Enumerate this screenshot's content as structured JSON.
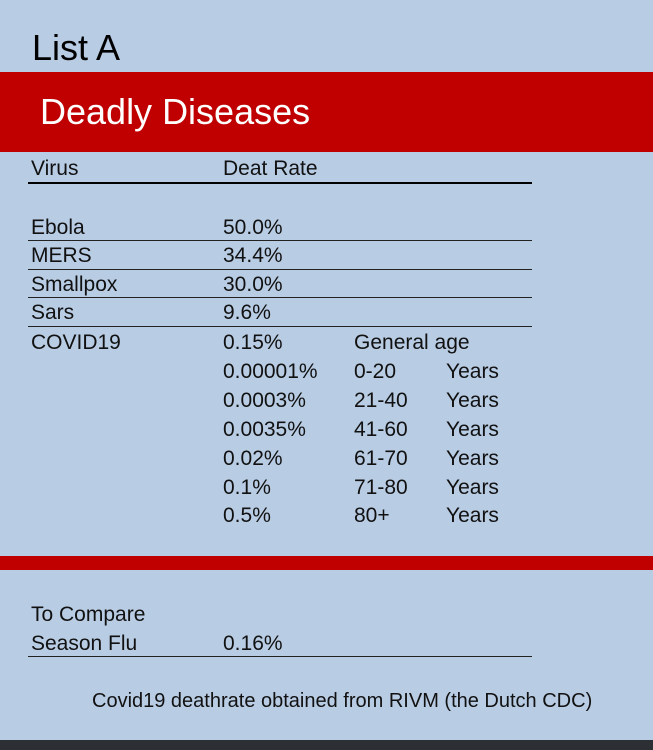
{
  "list_title": "List A",
  "banner_title": "Deadly Diseases",
  "table": {
    "headers": {
      "virus": "Virus",
      "rate": "Deat Rate"
    },
    "rows": [
      {
        "virus": "Ebola",
        "rate": "50.0%"
      },
      {
        "virus": "MERS",
        "rate": "34.4%"
      },
      {
        "virus": "Smallpox",
        "rate": "30.0%"
      },
      {
        "virus": "Sars",
        "rate": "9.6%"
      },
      {
        "virus": "COVID19",
        "rate": "0.15%",
        "note": "General age"
      }
    ],
    "covid_age_breakdown": [
      {
        "rate": "0.00001%",
        "age": "0-20",
        "unit": "Years"
      },
      {
        "rate": "0.0003%",
        "age": "21-40",
        "unit": "Years"
      },
      {
        "rate": "0.0035%",
        "age": "41-60",
        "unit": "Years"
      },
      {
        "rate": "0.02%",
        "age": "61-70",
        "unit": "Years"
      },
      {
        "rate": "0.1%",
        "age": "71-80",
        "unit": "Years"
      },
      {
        "rate": "0.5%",
        "age": "80+",
        "unit": "Years"
      }
    ]
  },
  "compare": {
    "label": "To Compare",
    "name": "Season Flu",
    "rate": "0.16%"
  },
  "source_note": "Covid19 deathrate obtained from RIVM (the Dutch CDC)",
  "colors": {
    "background": "#b8cce4",
    "banner": "#c00000",
    "banner_text": "#ffffff",
    "bottom_bar": "#2c2f33"
  }
}
